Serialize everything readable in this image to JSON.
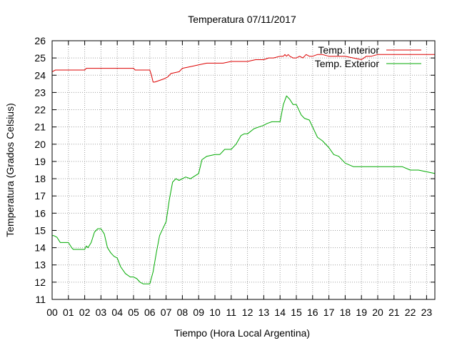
{
  "chart_data": {
    "type": "line",
    "title": "Temperatura 07/11/2017",
    "xlabel": "Tiempo (Hora Local Argentina)",
    "ylabel": "Temperatura (Grados Celsius)",
    "xlim": [
      0,
      23.5
    ],
    "ylim": [
      11,
      26
    ],
    "xticks": [
      "00",
      "01",
      "02",
      "03",
      "04",
      "05",
      "06",
      "07",
      "08",
      "09",
      "10",
      "11",
      "12",
      "13",
      "14",
      "15",
      "16",
      "17",
      "18",
      "19",
      "20",
      "21",
      "22",
      "23"
    ],
    "yticks": [
      11,
      12,
      13,
      14,
      15,
      16,
      17,
      18,
      19,
      20,
      21,
      22,
      23,
      24,
      25,
      26
    ],
    "grid": true,
    "legend_position": "top-right",
    "series": [
      {
        "name": "Temp. Interior",
        "color": "#dd0000",
        "x": [
          0,
          0.2,
          0.4,
          1.0,
          2.0,
          2.1,
          3.0,
          4.0,
          5.0,
          5.1,
          5.5,
          6.0,
          6.1,
          6.2,
          6.3,
          6.6,
          6.9,
          7.1,
          7.3,
          7.8,
          8.0,
          8.5,
          9.0,
          9.5,
          10.0,
          10.5,
          11.0,
          11.5,
          12.0,
          12.5,
          13.0,
          13.3,
          13.6,
          14.0,
          14.2,
          14.3,
          14.4,
          14.5,
          14.6,
          14.8,
          15.0,
          15.2,
          15.4,
          15.6,
          15.8,
          16.0,
          16.3,
          16.6,
          17.0,
          18.0,
          18.5,
          19.0,
          19.3,
          19.6,
          20.0,
          21.0,
          22.0,
          23.0,
          23.5
        ],
        "values": [
          24.2,
          24.3,
          24.3,
          24.3,
          24.3,
          24.4,
          24.4,
          24.4,
          24.4,
          24.3,
          24.3,
          24.3,
          24.0,
          23.6,
          23.6,
          23.7,
          23.8,
          23.9,
          24.1,
          24.2,
          24.4,
          24.5,
          24.6,
          24.7,
          24.7,
          24.7,
          24.8,
          24.8,
          24.8,
          24.9,
          24.9,
          25.0,
          25.0,
          25.1,
          25.1,
          25.2,
          25.1,
          25.2,
          25.1,
          25.0,
          25.0,
          25.1,
          25.0,
          25.2,
          25.1,
          25.1,
          25.2,
          25.2,
          25.1,
          25.1,
          25.0,
          24.9,
          25.1,
          25.1,
          25.2,
          25.2,
          25.2,
          25.2,
          25.2
        ]
      },
      {
        "name": "Temp. Exterior",
        "color": "#00aa00",
        "x": [
          0,
          0.1,
          0.3,
          0.5,
          0.7,
          1.0,
          1.2,
          1.3,
          1.5,
          2.0,
          2.1,
          2.2,
          2.4,
          2.6,
          2.8,
          3.0,
          3.2,
          3.4,
          3.6,
          3.8,
          4.0,
          4.2,
          4.5,
          4.8,
          5.0,
          5.2,
          5.4,
          5.6,
          5.8,
          6.0,
          6.2,
          6.4,
          6.6,
          6.8,
          7.0,
          7.2,
          7.4,
          7.6,
          7.8,
          8.0,
          8.2,
          8.5,
          9.0,
          9.2,
          9.5,
          10.0,
          10.3,
          10.6,
          10.8,
          11.0,
          11.3,
          11.6,
          11.8,
          12.0,
          12.4,
          12.7,
          13.0,
          13.2,
          13.5,
          13.8,
          14.0,
          14.2,
          14.4,
          14.6,
          14.8,
          15.0,
          15.3,
          15.5,
          15.8,
          16.0,
          16.3,
          16.6,
          17.0,
          17.3,
          17.6,
          18.0,
          18.5,
          19.0,
          19.5,
          20.0,
          20.5,
          21.0,
          21.5,
          22.0,
          22.5,
          23.0,
          23.5
        ],
        "values": [
          14.7,
          14.7,
          14.6,
          14.3,
          14.3,
          14.3,
          14.0,
          13.9,
          13.9,
          13.9,
          14.1,
          14.0,
          14.3,
          14.9,
          15.1,
          15.1,
          14.8,
          14.0,
          13.7,
          13.5,
          13.4,
          12.9,
          12.5,
          12.3,
          12.3,
          12.2,
          12.0,
          11.9,
          11.9,
          11.9,
          12.6,
          13.7,
          14.7,
          15.1,
          15.5,
          16.8,
          17.8,
          18.0,
          17.9,
          18.0,
          18.1,
          18.0,
          18.3,
          19.1,
          19.3,
          19.4,
          19.4,
          19.7,
          19.7,
          19.7,
          20.0,
          20.5,
          20.6,
          20.6,
          20.9,
          21.0,
          21.1,
          21.2,
          21.3,
          21.3,
          21.3,
          22.3,
          22.8,
          22.6,
          22.3,
          22.3,
          21.7,
          21.5,
          21.4,
          21.0,
          20.4,
          20.2,
          19.8,
          19.4,
          19.3,
          18.9,
          18.7,
          18.7,
          18.7,
          18.7,
          18.7,
          18.7,
          18.7,
          18.5,
          18.5,
          18.4,
          18.3
        ]
      }
    ]
  }
}
